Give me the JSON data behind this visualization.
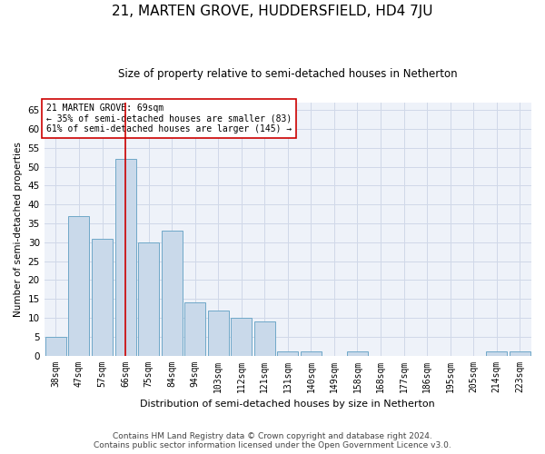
{
  "title": "21, MARTEN GROVE, HUDDERSFIELD, HD4 7JU",
  "subtitle": "Size of property relative to semi-detached houses in Netherton",
  "xlabel": "Distribution of semi-detached houses by size in Netherton",
  "ylabel": "Number of semi-detached properties",
  "categories": [
    "38sqm",
    "47sqm",
    "57sqm",
    "66sqm",
    "75sqm",
    "84sqm",
    "94sqm",
    "103sqm",
    "112sqm",
    "121sqm",
    "131sqm",
    "140sqm",
    "149sqm",
    "158sqm",
    "168sqm",
    "177sqm",
    "186sqm",
    "195sqm",
    "205sqm",
    "214sqm",
    "223sqm"
  ],
  "values": [
    5,
    37,
    31,
    52,
    30,
    33,
    14,
    12,
    10,
    9,
    1,
    1,
    0,
    1,
    0,
    0,
    0,
    0,
    0,
    1,
    1
  ],
  "bar_color": "#c9d9ea",
  "bar_edge_color": "#6fa8c8",
  "highlight_index": 3,
  "highlight_line_color": "#cc0000",
  "annotation_text": "21 MARTEN GROVE: 69sqm\n← 35% of semi-detached houses are smaller (83)\n61% of semi-detached houses are larger (145) →",
  "annotation_box_color": "#ffffff",
  "annotation_box_edge_color": "#cc0000",
  "ylim": [
    0,
    67
  ],
  "yticks": [
    0,
    5,
    10,
    15,
    20,
    25,
    30,
    35,
    40,
    45,
    50,
    55,
    60,
    65
  ],
  "grid_color": "#d0d8e8",
  "background_color": "#eef2f9",
  "footer_line1": "Contains HM Land Registry data © Crown copyright and database right 2024.",
  "footer_line2": "Contains public sector information licensed under the Open Government Licence v3.0.",
  "title_fontsize": 11,
  "subtitle_fontsize": 8.5,
  "footer_fontsize": 6.5,
  "annotation_fontsize": 7.0,
  "ylabel_fontsize": 7.5,
  "xlabel_fontsize": 8.0,
  "tick_fontsize": 7.0,
  "ytick_fontsize": 7.5
}
